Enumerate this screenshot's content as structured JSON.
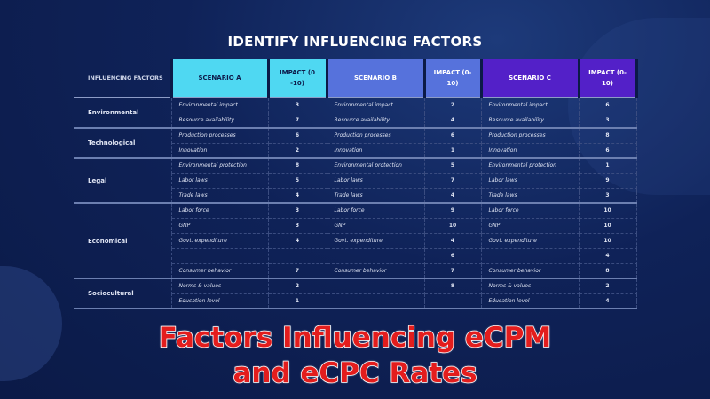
{
  "title": "IDENTIFY INFLUENCING FACTORS",
  "headers": {
    "factors": "INFLUENCING FACTORS",
    "a": "SCENARIO A",
    "ia": "IMPACT (0 -10)",
    "b": "SCENARIO B",
    "ib": "IMPACT (0-10)",
    "c": "SCENARIO C",
    "ic": "IMPACT (0-10)"
  },
  "colors": {
    "a": "#4fd8f2",
    "b": "#5672dc",
    "c": "#5320c8",
    "overlay": "#e31d1d"
  },
  "groups": [
    {
      "name": "Environmental",
      "rows": [
        [
          "Environmental impact",
          "3",
          "Environmental impact",
          "2",
          "Environmental impact",
          "6"
        ],
        [
          "Resource availability",
          "7",
          "Resource availability",
          "4",
          "Resource availability",
          "3"
        ]
      ]
    },
    {
      "name": "Technological",
      "rows": [
        [
          "Production processes",
          "6",
          "Production processes",
          "6",
          "Production processes",
          "8"
        ],
        [
          "Innovation",
          "2",
          "Innovation",
          "1",
          "Innovation",
          "6"
        ]
      ]
    },
    {
      "name": "Legal",
      "rows": [
        [
          "Environmental protection",
          "8",
          "Environmental protection",
          "5",
          "Environmental protection",
          "1"
        ],
        [
          "Labor laws",
          "5",
          "Labor laws",
          "7",
          "Labor laws",
          "9"
        ],
        [
          "Trade laws",
          "4",
          "Trade laws",
          "4",
          "Trade laws",
          "3"
        ]
      ]
    },
    {
      "name": "Economical",
      "rows": [
        [
          "Labor force",
          "3",
          "Labor force",
          "9",
          "Labor force",
          "10"
        ],
        [
          "GNP",
          "3",
          "GNP",
          "10",
          "GNP",
          "10"
        ],
        [
          "Govt. expenditure",
          "4",
          "Govt. expenditure",
          "4",
          "Govt. expenditure",
          "10"
        ],
        [
          "",
          "",
          "",
          "6",
          "",
          "4"
        ],
        [
          "Consumer behavior",
          "7",
          "Consumer behavior",
          "7",
          "Consumer behavior",
          "8"
        ]
      ]
    },
    {
      "name": "Sociocultural",
      "rows": [
        [
          "Norms & values",
          "2",
          "",
          "8",
          "Norms & values",
          "2"
        ],
        [
          "Education level",
          "1",
          "",
          "",
          "Education level",
          "4"
        ]
      ]
    }
  ],
  "overlay": {
    "line1": "Factors Influencing eCPM",
    "line2": "and eCPC Rates"
  }
}
